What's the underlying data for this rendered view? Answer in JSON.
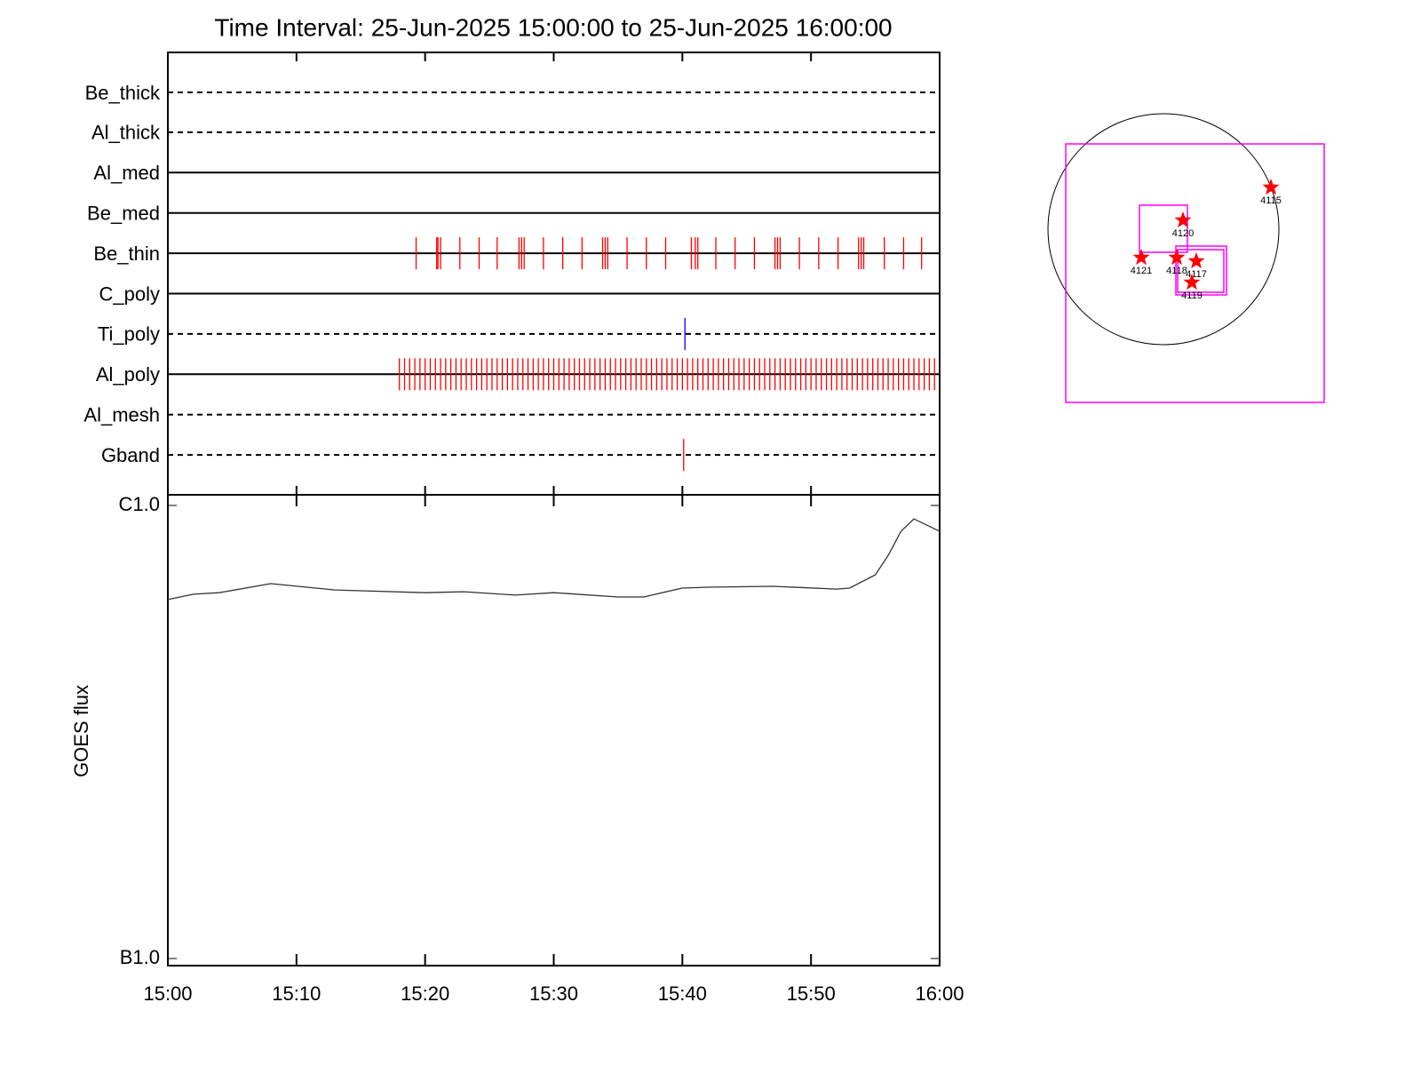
{
  "chart_data": [
    {
      "type": "event",
      "title": "Time Interval: 25-Jun-2025 15:00:00 to 25-Jun-2025 16:00:00",
      "xlim": [
        0,
        60
      ],
      "channels": [
        {
          "name": "Be_thick",
          "style": "dashed",
          "color": "#ff0000",
          "events": []
        },
        {
          "name": "Al_thick",
          "style": "dashed",
          "color": "#ff0000",
          "events": []
        },
        {
          "name": "Al_med",
          "style": "solid",
          "color": "#ff0000",
          "events": []
        },
        {
          "name": "Be_med",
          "style": "solid",
          "color": "#ff0000",
          "events": []
        },
        {
          "name": "Be_thin",
          "style": "solid",
          "color": "#ff0000",
          "events": [
            19.3,
            20.9,
            21.0,
            21.2,
            22.7,
            24.2,
            25.6,
            27.3,
            27.5,
            27.7,
            29.2,
            30.7,
            32.2,
            33.8,
            34.0,
            34.2,
            35.7,
            37.2,
            38.7,
            40.7,
            41.0,
            41.2,
            42.6,
            44.1,
            45.6,
            47.2,
            47.4,
            47.6,
            49.1,
            50.6,
            52.1,
            53.7,
            53.9,
            54.1,
            55.7,
            57.2,
            58.6
          ]
        },
        {
          "name": "C_poly",
          "style": "solid",
          "color": "#ff0000",
          "events": []
        },
        {
          "name": "Ti_poly",
          "style": "dashed",
          "color": "#0000ff",
          "events": [
            40.2
          ]
        },
        {
          "name": "Al_poly",
          "style": "solid",
          "color": "#ff0000",
          "events": [
            18.0,
            18.4,
            18.8,
            19.2,
            19.6,
            20.0,
            20.4,
            20.8,
            21.2,
            21.6,
            22.0,
            22.4,
            22.8,
            23.2,
            23.6,
            24.0,
            24.4,
            24.8,
            25.2,
            25.6,
            26.0,
            26.4,
            26.8,
            27.2,
            27.6,
            28.0,
            28.4,
            28.8,
            29.2,
            29.6,
            30.0,
            30.4,
            30.8,
            31.2,
            31.6,
            32.0,
            32.4,
            32.8,
            33.2,
            33.6,
            34.0,
            34.4,
            34.8,
            35.2,
            35.6,
            36.0,
            36.4,
            36.8,
            37.2,
            37.6,
            38.0,
            38.4,
            38.8,
            39.2,
            39.6,
            40.0,
            40.4,
            40.8,
            41.2,
            41.6,
            42.0,
            42.4,
            42.8,
            43.2,
            43.6,
            44.0,
            44.4,
            44.8,
            45.2,
            45.6,
            46.0,
            46.4,
            46.8,
            47.2,
            47.6,
            48.0,
            48.4,
            48.8,
            49.2,
            49.6,
            50.0,
            50.4,
            50.8,
            51.2,
            51.6,
            52.0,
            52.4,
            52.8,
            53.2,
            53.6,
            54.0,
            54.4,
            54.8,
            55.2,
            55.6,
            56.0,
            56.4,
            56.8,
            57.2,
            57.6,
            58.0,
            58.4,
            58.8,
            59.2,
            59.6
          ]
        },
        {
          "name": "Al_mesh",
          "style": "dashed",
          "color": "#ff0000",
          "events": []
        },
        {
          "name": "Gband",
          "style": "dashed",
          "color": "#ff0000",
          "events": [
            40.1
          ]
        }
      ]
    },
    {
      "type": "line",
      "ylabel": "GOES flux",
      "log": true,
      "color": "#333333",
      "x": [
        0,
        2,
        4,
        8,
        13,
        20,
        23,
        27,
        30,
        35,
        37,
        40,
        42,
        47,
        52,
        53,
        55,
        56,
        57,
        58,
        59,
        60
      ],
      "values": [
        6.2e-07,
        6.37e-07,
        6.42e-07,
        6.72e-07,
        6.51e-07,
        6.42e-07,
        6.45e-07,
        6.34e-07,
        6.42e-07,
        6.28e-07,
        6.28e-07,
        6.57e-07,
        6.6e-07,
        6.63e-07,
        6.54e-07,
        6.57e-07,
        7.03e-07,
        7.76e-07,
        8.77e-07,
        9.34e-07,
        9.05e-07,
        8.77e-07
      ],
      "xlim": [
        0,
        60
      ],
      "xticks": [
        {
          "value": 0,
          "label": "15:00"
        },
        {
          "value": 10,
          "label": "15:10"
        },
        {
          "value": 20,
          "label": "15:20"
        },
        {
          "value": 30,
          "label": "15:30"
        },
        {
          "value": 40,
          "label": "15:40"
        },
        {
          "value": 50,
          "label": "15:50"
        },
        {
          "value": 60,
          "label": "16:00"
        }
      ],
      "ylim": [
        1e-07,
        1e-06
      ],
      "yticks": [
        {
          "value": 1e-07,
          "label": "B1.0"
        },
        {
          "value": 1e-06,
          "label": "C1.0"
        }
      ]
    }
  ],
  "map": {
    "sources": [
      "4115",
      "4120",
      "4121",
      "4118",
      "4117",
      "4119"
    ]
  }
}
